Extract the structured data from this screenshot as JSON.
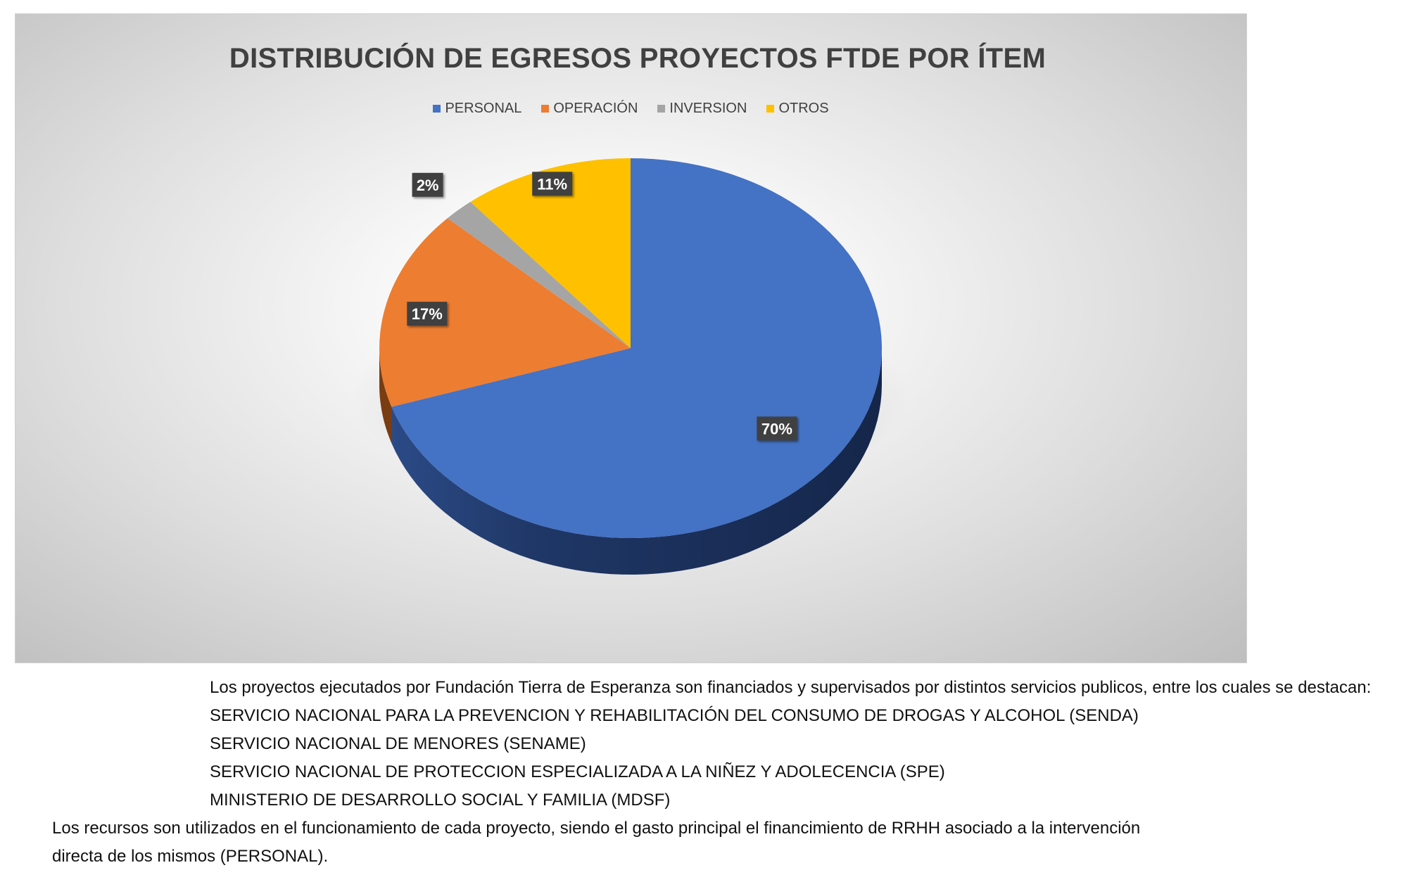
{
  "chart_data": {
    "type": "pie",
    "title": "DISTRIBUCIÓN DE EGRESOS PROYECTOS FTDE POR ÍTEM",
    "categories": [
      "PERSONAL",
      "OPERACIÓN",
      "INVERSION",
      "OTROS"
    ],
    "values": [
      70,
      17,
      2,
      11
    ],
    "value_labels": [
      "70%",
      "17%",
      "2%",
      "11%"
    ],
    "colors": [
      "#4472C4",
      "#ED7D31",
      "#A5A5A5",
      "#FFC000"
    ],
    "legend_position": "top",
    "style": "3d"
  },
  "notes": {
    "intro": "Los proyectos ejecutados  por Fundación Tierra de Esperanza son financiados y supervisados por distintos servicios publicos, entre los cuales se destacan:",
    "services": [
      "SERVICIO NACIONAL PARA LA PREVENCION Y REHABILITACIÓN DEL CONSUMO DE DROGAS Y ALCOHOL (SENDA)",
      "SERVICIO NACIONAL DE MENORES (SENAME)",
      "SERVICIO NACIONAL DE PROTECCION ESPECIALIZADA A LA NIÑEZ Y ADOLECENCIA (SPE)",
      "MINISTERIO DE DESARROLLO SOCIAL Y FAMILIA (MDSF)"
    ],
    "closing_line1": "Los recursos son utilizados en el funcionamiento de cada proyecto, siendo el gasto principal el financimiento de RRHH asociado a la intervención",
    "closing_line2": "directa de los mismos (PERSONAL)."
  }
}
